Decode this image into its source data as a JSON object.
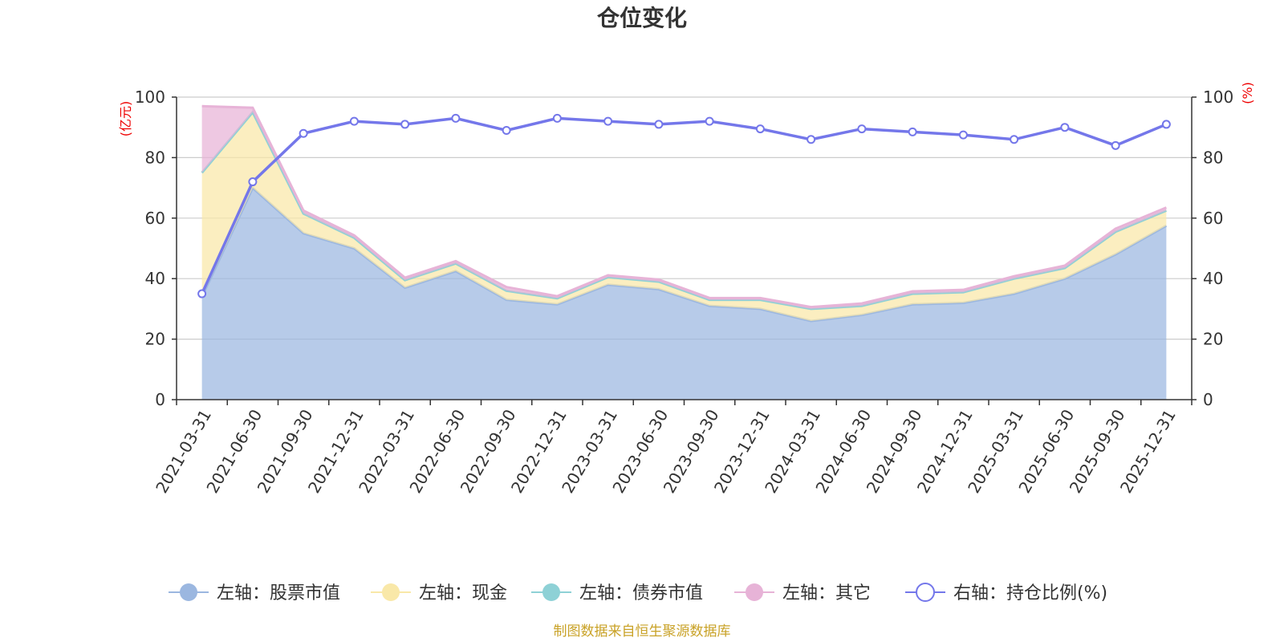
{
  "chart_data": {
    "type": "area",
    "title": "仓位变化",
    "y_left_unit": "(亿元)",
    "y_right_unit": "(%)",
    "ylim_left": [
      0,
      100
    ],
    "ylim_right": [
      0,
      100
    ],
    "y_ticks": [
      0,
      20,
      40,
      60,
      80,
      100
    ],
    "grid": true,
    "legend_position": "bottom",
    "categories": [
      "2021-03-31",
      "2021-06-30",
      "2021-09-30",
      "2021-12-31",
      "2022-03-31",
      "2022-06-30",
      "2022-09-30",
      "2022-12-31",
      "2023-03-31",
      "2023-06-30",
      "2023-09-30",
      "2023-12-31",
      "2024-03-31",
      "2024-06-30",
      "2024-09-30",
      "2024-12-31",
      "2025-03-31",
      "2025-06-30",
      "2025-09-30",
      "2025-12-31"
    ],
    "series": [
      {
        "name": "左轴：股票市值",
        "axis": "left",
        "kind": "stacked-area",
        "color": "#9bb7e0",
        "values": [
          34,
          70,
          55,
          50,
          37,
          42.5,
          33,
          31.5,
          38,
          36.5,
          31,
          30,
          26,
          28,
          31.5,
          32,
          35,
          40,
          48,
          57.5
        ]
      },
      {
        "name": "左轴：现金",
        "axis": "left",
        "kind": "stacked-area",
        "color": "#f9e8a8",
        "values": [
          41,
          25,
          6.5,
          3.5,
          2.5,
          2.5,
          3,
          2,
          2.5,
          2.5,
          2,
          3,
          4,
          3,
          3.5,
          3.5,
          5,
          3.5,
          7.5,
          5
        ]
      },
      {
        "name": "左轴：债券市值",
        "axis": "left",
        "kind": "stacked-area",
        "color": "#8ed1d6",
        "values": [
          0,
          0,
          0,
          0,
          0,
          0,
          0,
          0,
          0,
          0,
          0,
          0,
          0,
          0,
          0,
          0,
          0,
          0,
          0,
          0
        ]
      },
      {
        "name": "左轴：其它",
        "axis": "left",
        "kind": "stacked-area",
        "color": "#e7b3d7",
        "values": [
          22,
          1.5,
          1,
          0.8,
          0.8,
          0.8,
          1.2,
          0.7,
          0.6,
          0.7,
          0.6,
          0.6,
          0.6,
          0.8,
          0.8,
          0.8,
          0.8,
          0.8,
          1,
          1
        ]
      },
      {
        "name": "右轴：持仓比例(%)",
        "axis": "right",
        "kind": "line",
        "color": "#7477ea",
        "values": [
          35,
          72,
          88,
          92,
          91,
          93,
          89,
          93,
          92,
          91,
          92,
          89.5,
          86,
          89.5,
          88.5,
          87.5,
          86,
          90,
          84,
          91
        ]
      }
    ],
    "source": "制图数据来自恒生聚源数据库"
  }
}
